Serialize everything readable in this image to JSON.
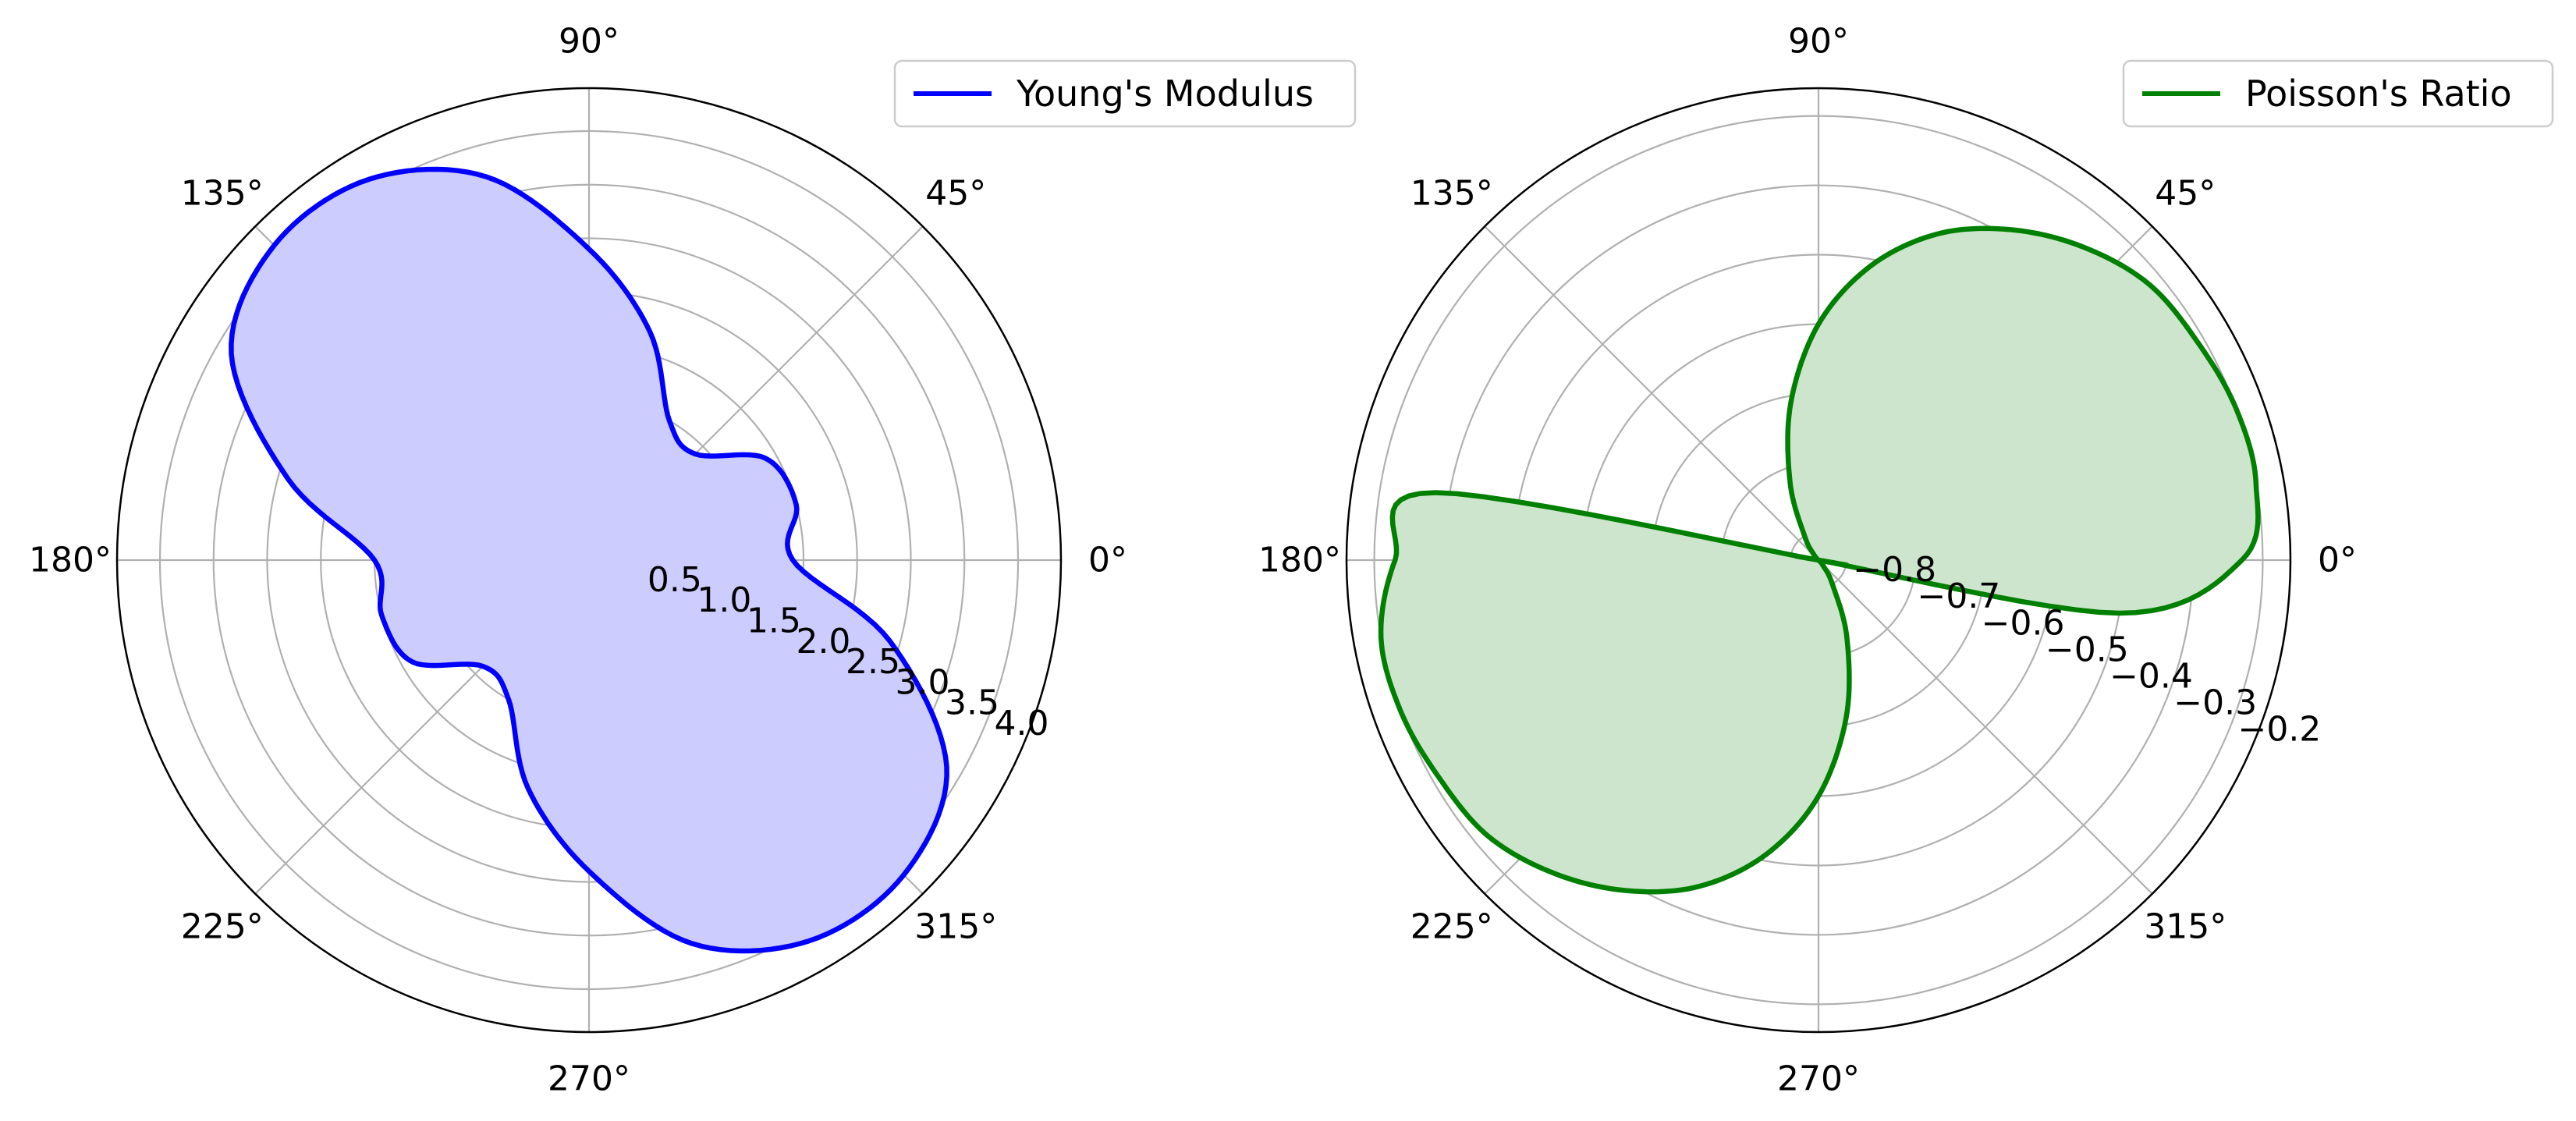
{
  "chart_data": [
    {
      "type": "polar-line",
      "title": "",
      "angle_ticks": [
        "0°",
        "45°",
        "90°",
        "135°",
        "180°",
        "225°",
        "270°",
        "315°"
      ],
      "radial_ticks": [
        "0.5",
        "1.0",
        "1.5",
        "2.0",
        "2.5",
        "3.0",
        "3.5",
        "4.0"
      ],
      "radial_tick_values": [
        0.5,
        1.0,
        1.5,
        2.0,
        2.5,
        3.0,
        3.5,
        4.0
      ],
      "rlim": [
        0,
        4.4
      ],
      "grid": true,
      "legend": "top-right",
      "series": [
        {
          "name": "Young's Modulus",
          "color": "#0000ff",
          "fill": "#ccccff",
          "theta_deg": [
            0,
            15,
            30,
            45,
            60,
            75,
            90,
            105,
            120,
            135,
            150,
            165,
            180,
            195,
            210,
            225,
            240,
            255,
            270,
            285,
            300,
            315,
            330,
            345
          ],
          "r": [
            1.9,
            2.0,
            1.9,
            1.4,
            1.5,
            2.2,
            2.9,
            3.7,
            4.1,
            4.15,
            3.85,
            2.9,
            2.0,
            2.0,
            1.9,
            1.4,
            1.5,
            2.2,
            2.9,
            3.7,
            4.1,
            4.15,
            3.85,
            2.9
          ]
        }
      ]
    },
    {
      "type": "polar-line",
      "title": "",
      "angle_ticks": [
        "0°",
        "45°",
        "90°",
        "135°",
        "180°",
        "225°",
        "270°",
        "315°"
      ],
      "radial_ticks": [
        "−0.8",
        "−0.7",
        "−0.6",
        "−0.5",
        "−0.4",
        "−0.3",
        "−0.2"
      ],
      "radial_tick_values": [
        -0.8,
        -0.7,
        -0.6,
        -0.5,
        -0.4,
        -0.3,
        -0.2
      ],
      "rlim": [
        -0.84,
        -0.16
      ],
      "grid": true,
      "legend": "top-right",
      "series": [
        {
          "name": "Poisson's Ratio",
          "color": "#008000",
          "fill": "#cce5cc",
          "theta_deg": [
            -18,
            -10,
            0,
            10,
            20,
            30,
            40,
            50,
            60,
            70,
            80,
            90,
            100,
            110,
            120,
            130,
            140,
            150,
            162,
            170,
            180,
            190,
            200,
            210,
            220,
            230,
            240,
            250,
            260,
            270,
            280,
            290,
            300,
            310,
            320,
            330,
            340,
            342
          ],
          "r": [
            -0.84,
            -0.4,
            -0.23,
            -0.2,
            -0.2,
            -0.21,
            -0.22,
            -0.25,
            -0.29,
            -0.34,
            -0.41,
            -0.5,
            -0.61,
            -0.72,
            -0.8,
            -0.83,
            -0.84,
            -0.84,
            -0.84,
            -0.28,
            -0.23,
            -0.2,
            -0.2,
            -0.21,
            -0.22,
            -0.25,
            -0.29,
            -0.34,
            -0.41,
            -0.5,
            -0.61,
            -0.72,
            -0.8,
            -0.83,
            -0.84,
            -0.84,
            -0.84,
            -0.84
          ]
        }
      ]
    }
  ]
}
